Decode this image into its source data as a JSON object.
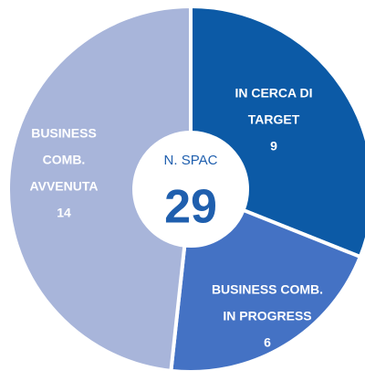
{
  "chart_data": {
    "type": "donut",
    "categories": [
      [
        "IN CERCA DI",
        "TARGET"
      ],
      [
        "BUSINESS COMB.",
        "IN PROGRESS"
      ],
      [
        "BUSINESS",
        "COMB.",
        "AVVENUTA"
      ]
    ],
    "values": [
      9,
      6,
      14
    ],
    "colors": [
      "#0c5aa6",
      "#4472c4",
      "#a8b5da"
    ],
    "center_label": "N. SPAC",
    "center_value": 29
  }
}
